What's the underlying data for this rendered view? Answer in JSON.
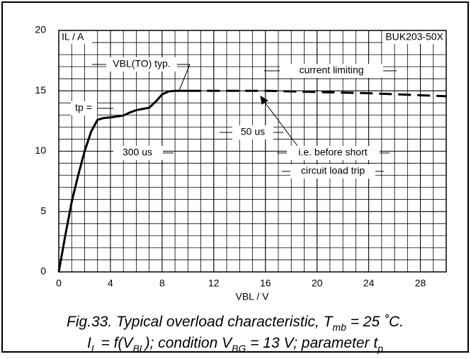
{
  "chart_data": {
    "type": "line",
    "y_label": "IL / A",
    "x_label": "VBL / V",
    "part": "BUK203-50X",
    "xlim": [
      0,
      30
    ],
    "ylim": [
      0,
      20
    ],
    "xticks": [
      0,
      4,
      8,
      12,
      16,
      20,
      24,
      28
    ],
    "yticks": [
      0,
      5,
      10,
      15,
      20
    ],
    "grid": true,
    "color": "#000000",
    "series": [
      {
        "style": "solid",
        "x": [
          0,
          0.5,
          1,
          1.5,
          2,
          2.5,
          3,
          3.5,
          4,
          5,
          5.5,
          6,
          7,
          7.5,
          8,
          8.5,
          9,
          10
        ],
        "values": [
          0,
          3,
          5.8,
          8,
          10,
          11.6,
          12.6,
          12.75,
          12.8,
          12.95,
          13.2,
          13.4,
          13.6,
          14.1,
          14.7,
          14.95,
          15,
          15
        ]
      },
      {
        "style": "dashed",
        "x": [
          10,
          16,
          20,
          24,
          30
        ],
        "values": [
          15,
          15,
          14.9,
          14.8,
          14.55
        ]
      }
    ],
    "annotations": [
      "VBL(TO) typ.",
      "current limiting",
      "tp =",
      "300 us",
      "50 us",
      "i.e. before short",
      "circuit load trip"
    ],
    "caption": {
      "line1": [
        "Fig.33.   Typical overload characteristic, T",
        "mb",
        " = 25 ˚C."
      ],
      "line2": [
        "I",
        "L",
        " = f(V",
        "BL",
        "); condition V",
        "BG",
        " = 13 V; parameter t",
        "p"
      ]
    }
  }
}
